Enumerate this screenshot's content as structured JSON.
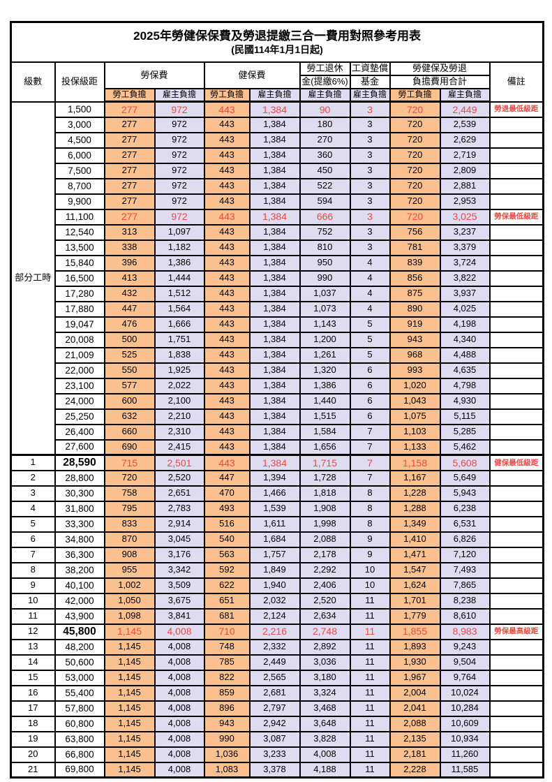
{
  "title": "2025年勞健保保費及勞退提繳三合一費用對照參考用表",
  "subtitle": "(民國114年1月1日起)",
  "columns": {
    "level": "級數",
    "bracket": "投保級距",
    "labor_group": "勞保費",
    "health_group": "健保費",
    "pension_line1": "勞工退休",
    "pension_line2": "金(提繳6%)",
    "wage_fund_line1": "工資墊償",
    "wage_fund_line2": "基金",
    "total_line1": "勞健保及勞退",
    "total_line2": "負擔費用合計",
    "worker": "勞工負擔",
    "employer": "雇主負擔",
    "remark": "備註"
  },
  "part_time_label": "部分工時",
  "part_time_span": 23,
  "colors": {
    "worker_bg": "#FAC090",
    "employer_bg": "#DFDBF1",
    "highlight_red": "#EE4A43",
    "border": "#000000"
  },
  "rows": [
    {
      "level": "",
      "bracket": "1,500",
      "v": [
        "277",
        "972",
        "443",
        "1,384",
        "90",
        "3",
        "720",
        "2,449"
      ],
      "remark": "勞退最低級距",
      "hl": true,
      "big": false
    },
    {
      "level": "",
      "bracket": "3,000",
      "v": [
        "277",
        "972",
        "443",
        "1,384",
        "180",
        "3",
        "720",
        "2,539"
      ],
      "remark": "",
      "hl": false,
      "big": false
    },
    {
      "level": "",
      "bracket": "4,500",
      "v": [
        "277",
        "972",
        "443",
        "1,384",
        "270",
        "3",
        "720",
        "2,629"
      ],
      "remark": "",
      "hl": false,
      "big": false
    },
    {
      "level": "",
      "bracket": "6,000",
      "v": [
        "277",
        "972",
        "443",
        "1,384",
        "360",
        "3",
        "720",
        "2,719"
      ],
      "remark": "",
      "hl": false,
      "big": false
    },
    {
      "level": "",
      "bracket": "7,500",
      "v": [
        "277",
        "972",
        "443",
        "1,384",
        "450",
        "3",
        "720",
        "2,809"
      ],
      "remark": "",
      "hl": false,
      "big": false
    },
    {
      "level": "",
      "bracket": "8,700",
      "v": [
        "277",
        "972",
        "443",
        "1,384",
        "522",
        "3",
        "720",
        "2,881"
      ],
      "remark": "",
      "hl": false,
      "big": false
    },
    {
      "level": "",
      "bracket": "9,900",
      "v": [
        "277",
        "972",
        "443",
        "1,384",
        "594",
        "3",
        "720",
        "2,953"
      ],
      "remark": "",
      "hl": false,
      "big": false
    },
    {
      "level": "",
      "bracket": "11,100",
      "v": [
        "277",
        "972",
        "443",
        "1,384",
        "666",
        "3",
        "720",
        "3,025"
      ],
      "remark": "勞保最低級距",
      "hl": true,
      "big": false
    },
    {
      "level": "",
      "bracket": "12,540",
      "v": [
        "313",
        "1,097",
        "443",
        "1,384",
        "752",
        "3",
        "756",
        "3,237"
      ],
      "remark": "",
      "hl": false,
      "big": false
    },
    {
      "level": "",
      "bracket": "13,500",
      "v": [
        "338",
        "1,182",
        "443",
        "1,384",
        "810",
        "3",
        "781",
        "3,379"
      ],
      "remark": "",
      "hl": false,
      "big": false
    },
    {
      "level": "",
      "bracket": "15,840",
      "v": [
        "396",
        "1,386",
        "443",
        "1,384",
        "950",
        "4",
        "839",
        "3,724"
      ],
      "remark": "",
      "hl": false,
      "big": false
    },
    {
      "level": "",
      "bracket": "16,500",
      "v": [
        "413",
        "1,444",
        "443",
        "1,384",
        "990",
        "4",
        "856",
        "3,822"
      ],
      "remark": "",
      "hl": false,
      "big": false
    },
    {
      "level": "",
      "bracket": "17,280",
      "v": [
        "432",
        "1,512",
        "443",
        "1,384",
        "1,037",
        "4",
        "875",
        "3,937"
      ],
      "remark": "",
      "hl": false,
      "big": false
    },
    {
      "level": "",
      "bracket": "17,880",
      "v": [
        "447",
        "1,564",
        "443",
        "1,384",
        "1,073",
        "4",
        "890",
        "4,025"
      ],
      "remark": "",
      "hl": false,
      "big": false
    },
    {
      "level": "",
      "bracket": "19,047",
      "v": [
        "476",
        "1,666",
        "443",
        "1,384",
        "1,143",
        "5",
        "919",
        "4,198"
      ],
      "remark": "",
      "hl": false,
      "big": false
    },
    {
      "level": "",
      "bracket": "20,008",
      "v": [
        "500",
        "1,751",
        "443",
        "1,384",
        "1,200",
        "5",
        "943",
        "4,340"
      ],
      "remark": "",
      "hl": false,
      "big": false
    },
    {
      "level": "",
      "bracket": "21,009",
      "v": [
        "525",
        "1,838",
        "443",
        "1,384",
        "1,261",
        "5",
        "968",
        "4,488"
      ],
      "remark": "",
      "hl": false,
      "big": false
    },
    {
      "level": "",
      "bracket": "22,000",
      "v": [
        "550",
        "1,925",
        "443",
        "1,384",
        "1,320",
        "6",
        "993",
        "4,635"
      ],
      "remark": "",
      "hl": false,
      "big": false
    },
    {
      "level": "",
      "bracket": "23,100",
      "v": [
        "577",
        "2,022",
        "443",
        "1,384",
        "1,386",
        "6",
        "1,020",
        "4,798"
      ],
      "remark": "",
      "hl": false,
      "big": false
    },
    {
      "level": "",
      "bracket": "24,000",
      "v": [
        "600",
        "2,100",
        "443",
        "1,384",
        "1,440",
        "6",
        "1,043",
        "4,930"
      ],
      "remark": "",
      "hl": false,
      "big": false
    },
    {
      "level": "",
      "bracket": "25,250",
      "v": [
        "632",
        "2,210",
        "443",
        "1,384",
        "1,515",
        "6",
        "1,075",
        "5,115"
      ],
      "remark": "",
      "hl": false,
      "big": false
    },
    {
      "level": "",
      "bracket": "26,400",
      "v": [
        "660",
        "2,310",
        "443",
        "1,384",
        "1,584",
        "7",
        "1,103",
        "5,285"
      ],
      "remark": "",
      "hl": false,
      "big": false
    },
    {
      "level": "",
      "bracket": "27,600",
      "v": [
        "690",
        "2,415",
        "443",
        "1,384",
        "1,656",
        "7",
        "1,133",
        "5,462"
      ],
      "remark": "",
      "hl": false,
      "big": false
    },
    {
      "level": "1",
      "bracket": "28,590",
      "v": [
        "715",
        "2,501",
        "443",
        "1,384",
        "1,715",
        "7",
        "1,158",
        "5,608"
      ],
      "remark": "健保最低級距",
      "hl": true,
      "big": true
    },
    {
      "level": "2",
      "bracket": "28,800",
      "v": [
        "720",
        "2,520",
        "447",
        "1,394",
        "1,728",
        "7",
        "1,167",
        "5,649"
      ],
      "remark": "",
      "hl": false,
      "big": false
    },
    {
      "level": "3",
      "bracket": "30,300",
      "v": [
        "758",
        "2,651",
        "470",
        "1,466",
        "1,818",
        "8",
        "1,228",
        "5,943"
      ],
      "remark": "",
      "hl": false,
      "big": false
    },
    {
      "level": "4",
      "bracket": "31,800",
      "v": [
        "795",
        "2,783",
        "493",
        "1,539",
        "1,908",
        "8",
        "1,288",
        "6,238"
      ],
      "remark": "",
      "hl": false,
      "big": false
    },
    {
      "level": "5",
      "bracket": "33,300",
      "v": [
        "833",
        "2,914",
        "516",
        "1,611",
        "1,998",
        "8",
        "1,349",
        "6,531"
      ],
      "remark": "",
      "hl": false,
      "big": false
    },
    {
      "level": "6",
      "bracket": "34,800",
      "v": [
        "870",
        "3,045",
        "540",
        "1,684",
        "2,088",
        "9",
        "1,410",
        "6,826"
      ],
      "remark": "",
      "hl": false,
      "big": false
    },
    {
      "level": "7",
      "bracket": "36,300",
      "v": [
        "908",
        "3,176",
        "563",
        "1,757",
        "2,178",
        "9",
        "1,471",
        "7,120"
      ],
      "remark": "",
      "hl": false,
      "big": false
    },
    {
      "level": "8",
      "bracket": "38,200",
      "v": [
        "955",
        "3,342",
        "592",
        "1,849",
        "2,292",
        "10",
        "1,547",
        "7,493"
      ],
      "remark": "",
      "hl": false,
      "big": false
    },
    {
      "level": "9",
      "bracket": "40,100",
      "v": [
        "1,002",
        "3,509",
        "622",
        "1,940",
        "2,406",
        "10",
        "1,624",
        "7,865"
      ],
      "remark": "",
      "hl": false,
      "big": false
    },
    {
      "level": "10",
      "bracket": "42,000",
      "v": [
        "1,050",
        "3,675",
        "651",
        "2,032",
        "2,520",
        "11",
        "1,701",
        "8,238"
      ],
      "remark": "",
      "hl": false,
      "big": false
    },
    {
      "level": "11",
      "bracket": "43,900",
      "v": [
        "1,098",
        "3,841",
        "681",
        "2,124",
        "2,634",
        "11",
        "1,779",
        "8,610"
      ],
      "remark": "",
      "hl": false,
      "big": false
    },
    {
      "level": "12",
      "bracket": "45,800",
      "v": [
        "1,145",
        "4,008",
        "710",
        "2,216",
        "2,748",
        "11",
        "1,855",
        "8,983"
      ],
      "remark": "勞保最高級距",
      "hl": true,
      "big": true
    },
    {
      "level": "13",
      "bracket": "48,200",
      "v": [
        "1,145",
        "4,008",
        "748",
        "2,332",
        "2,892",
        "11",
        "1,893",
        "9,243"
      ],
      "remark": "",
      "hl": false,
      "big": false
    },
    {
      "level": "14",
      "bracket": "50,600",
      "v": [
        "1,145",
        "4,008",
        "785",
        "2,449",
        "3,036",
        "11",
        "1,930",
        "9,504"
      ],
      "remark": "",
      "hl": false,
      "big": false
    },
    {
      "level": "15",
      "bracket": "53,000",
      "v": [
        "1,145",
        "4,008",
        "822",
        "2,565",
        "3,180",
        "11",
        "1,967",
        "9,764"
      ],
      "remark": "",
      "hl": false,
      "big": false
    },
    {
      "level": "16",
      "bracket": "55,400",
      "v": [
        "1,145",
        "4,008",
        "859",
        "2,681",
        "3,324",
        "11",
        "2,004",
        "10,024"
      ],
      "remark": "",
      "hl": false,
      "big": false
    },
    {
      "level": "17",
      "bracket": "57,800",
      "v": [
        "1,145",
        "4,008",
        "896",
        "2,797",
        "3,468",
        "11",
        "2,041",
        "10,284"
      ],
      "remark": "",
      "hl": false,
      "big": false
    },
    {
      "level": "18",
      "bracket": "60,800",
      "v": [
        "1,145",
        "4,008",
        "943",
        "2,942",
        "3,648",
        "11",
        "2,088",
        "10,609"
      ],
      "remark": "",
      "hl": false,
      "big": false
    },
    {
      "level": "19",
      "bracket": "63,800",
      "v": [
        "1,145",
        "4,008",
        "990",
        "3,087",
        "3,828",
        "11",
        "2,135",
        "10,934"
      ],
      "remark": "",
      "hl": false,
      "big": false
    },
    {
      "level": "20",
      "bracket": "66,800",
      "v": [
        "1,145",
        "4,008",
        "1,036",
        "3,233",
        "4,008",
        "11",
        "2,181",
        "11,260"
      ],
      "remark": "",
      "hl": false,
      "big": false
    },
    {
      "level": "21",
      "bracket": "69,800",
      "v": [
        "1,145",
        "4,008",
        "1,083",
        "3,378",
        "4,188",
        "11",
        "2,228",
        "11,585"
      ],
      "remark": "",
      "hl": false,
      "big": false
    }
  ]
}
